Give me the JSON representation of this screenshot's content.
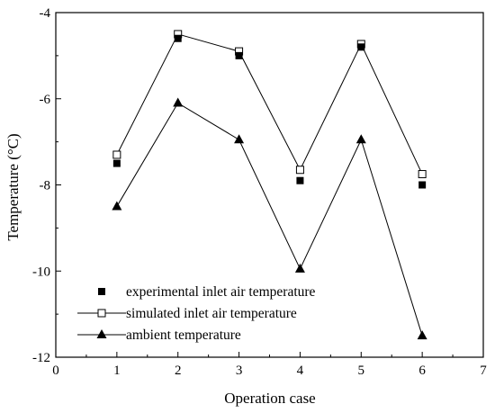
{
  "chart_data": {
    "type": "line",
    "xlabel": "Operation case",
    "ylabel": "Temperature (°C)",
    "xlim": [
      0,
      7
    ],
    "ylim": [
      -12,
      -4
    ],
    "xticks": [
      0,
      1,
      2,
      3,
      4,
      5,
      6,
      7
    ],
    "yticks": [
      -12,
      -10,
      -8,
      -6,
      -4
    ],
    "grid": false,
    "legend_position": "bottom-left",
    "series": [
      {
        "name": "experimental inlet air temperature",
        "marker": "filled-square",
        "line": false,
        "x": [
          1,
          2,
          3,
          4,
          5,
          6
        ],
        "values": [
          -7.5,
          -4.6,
          -5.0,
          -7.9,
          -4.8,
          -8.0
        ]
      },
      {
        "name": "simulated inlet air temperature",
        "marker": "open-square",
        "line": true,
        "x": [
          1,
          2,
          3,
          4,
          5,
          6
        ],
        "values": [
          -7.3,
          -4.5,
          -4.9,
          -7.65,
          -4.73,
          -7.75
        ]
      },
      {
        "name": "ambient temperature",
        "marker": "filled-triangle",
        "line": true,
        "x": [
          1,
          2,
          3,
          4,
          5,
          6
        ],
        "values": [
          -8.5,
          -6.1,
          -6.95,
          -9.95,
          -6.95,
          -11.5
        ]
      }
    ]
  }
}
